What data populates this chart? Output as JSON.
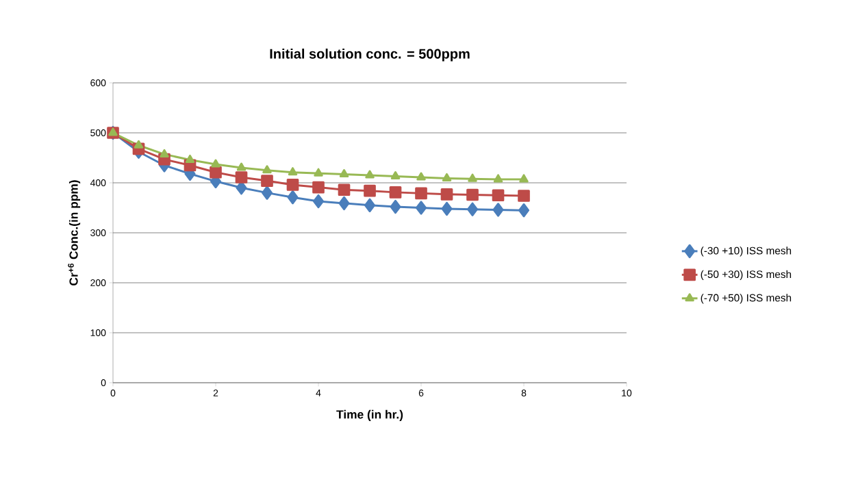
{
  "chart_data": {
    "type": "line",
    "title": "Initial solution conc. = 500ppm",
    "xlabel": "Time (in hr.)",
    "ylabel": "Cr$^{+6}$ Conc.(in ppm)",
    "x": [
      0,
      0.5,
      1,
      1.5,
      2,
      2.5,
      3,
      3.5,
      4,
      4.5,
      5,
      5.5,
      6,
      6.5,
      7,
      7.5,
      8
    ],
    "series": [
      {
        "name": "(-30 +10) ISS mesh",
        "color": "#4a7ebb",
        "marker": "diamond",
        "values": [
          500,
          462,
          435,
          418,
          403,
          390,
          380,
          371,
          363,
          359,
          355,
          352,
          350,
          348,
          347,
          346,
          345
        ]
      },
      {
        "name": "(-50 +30) ISS mesh",
        "color": "#be4b48",
        "marker": "square",
        "values": [
          500,
          468,
          447,
          435,
          421,
          411,
          404,
          396,
          391,
          386,
          384,
          381,
          379,
          377,
          376,
          375,
          374
        ]
      },
      {
        "name": "(-70 +50) ISS mesh",
        "color": "#98b954",
        "marker": "triangle",
        "values": [
          500,
          475,
          457,
          446,
          437,
          430,
          425,
          421,
          419,
          417,
          415,
          413,
          411,
          409,
          408,
          407,
          407
        ]
      }
    ],
    "xlim": [
      0,
      10
    ],
    "xticks": [
      0,
      2,
      4,
      6,
      8,
      10
    ],
    "ylim": [
      0,
      600
    ],
    "yticks": [
      0,
      100,
      200,
      300,
      400,
      500,
      600
    ],
    "grid": "y",
    "legend": "right",
    "line_style": "solid"
  }
}
